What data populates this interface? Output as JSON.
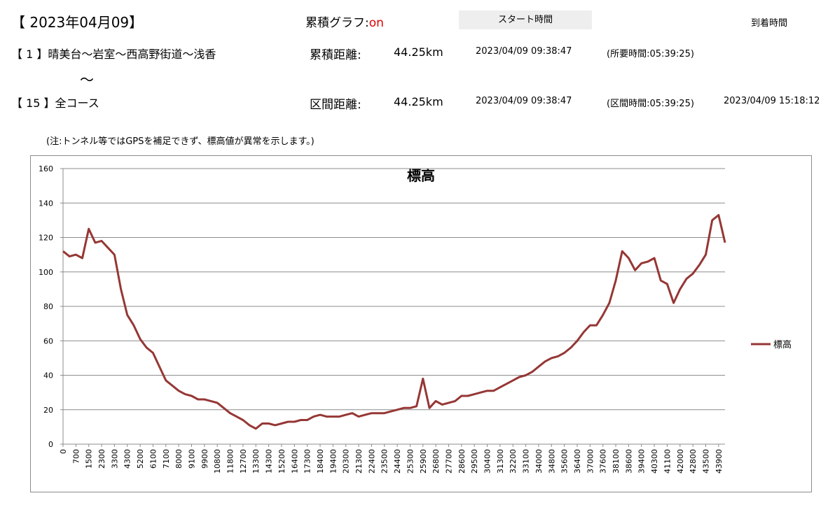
{
  "header": {
    "date": "【 2023年04月09】",
    "graph_label": "累積グラフ:",
    "graph_state": "on",
    "start_button": "スタート時間",
    "arrival_label": "到着時間",
    "row1": {
      "course": "【 1 】晴美台～岩室～西高野街道～浅香",
      "distance_label": "累積距離:",
      "distance": "44.25km",
      "start": "2023/04/09 09:38:47",
      "duration": "(所要時間:05:39:25)"
    },
    "separator": "～",
    "row2": {
      "course": "【 15 】全コース",
      "distance_label": "区間距離:",
      "distance": "44.25km",
      "start": "2023/04/09 09:38:47",
      "duration": "(区間時間:05:39:25)",
      "arrival": "2023/04/09 15:18:12"
    },
    "note": "(注:トンネル等ではGPSを補足できず、標高値が異常を示します。)"
  },
  "chart_data": {
    "type": "line",
    "title": "標高",
    "categories": [
      0,
      null,
      700,
      null,
      1500,
      null,
      2300,
      null,
      3300,
      null,
      4300,
      null,
      5200,
      null,
      6100,
      null,
      7100,
      null,
      8000,
      null,
      9100,
      null,
      9900,
      null,
      10800,
      null,
      11800,
      null,
      12700,
      null,
      13300,
      null,
      14300,
      null,
      15200,
      null,
      16400,
      null,
      17300,
      null,
      18400,
      null,
      19400,
      null,
      20300,
      null,
      21300,
      null,
      22400,
      null,
      23500,
      null,
      24400,
      null,
      25300,
      null,
      25900,
      null,
      26800,
      null,
      27700,
      null,
      28600,
      null,
      29500,
      null,
      30400,
      null,
      31300,
      null,
      32200,
      null,
      33100,
      null,
      34000,
      null,
      34800,
      null,
      35600,
      null,
      36400,
      null,
      37000,
      null,
      37600,
      null,
      38100,
      null,
      38600,
      null,
      39400,
      null,
      40300,
      null,
      41100,
      null,
      42000,
      null,
      42800,
      null,
      43500,
      null,
      43900,
      null
    ],
    "series": [
      {
        "name": "標高",
        "color": "#953735",
        "values": [
          112,
          109,
          110,
          108,
          125,
          117,
          118,
          114,
          110,
          90,
          75,
          69,
          61,
          56,
          53,
          45,
          37,
          34,
          31,
          29,
          28,
          26,
          26,
          25,
          24,
          21,
          18,
          16,
          14,
          11,
          9,
          12,
          12,
          11,
          12,
          13,
          13,
          14,
          14,
          16,
          17,
          16,
          16,
          16,
          17,
          18,
          16,
          17,
          18,
          18,
          18,
          19,
          20,
          21,
          21,
          22,
          38,
          21,
          25,
          23,
          24,
          25,
          28,
          28,
          29,
          30,
          31,
          31,
          33,
          35,
          37,
          39,
          40,
          42,
          45,
          48,
          50,
          51,
          53,
          56,
          60,
          65,
          69,
          69,
          75,
          82,
          95,
          112,
          108,
          101,
          105,
          106,
          108,
          95,
          93,
          82,
          90,
          96,
          99,
          104,
          110,
          130,
          133,
          117
        ]
      }
    ],
    "ylim": [
      0,
      160
    ],
    "yticks": [
      0,
      20,
      40,
      60,
      80,
      100,
      120,
      140,
      160
    ],
    "grid": true,
    "legend": "right"
  }
}
